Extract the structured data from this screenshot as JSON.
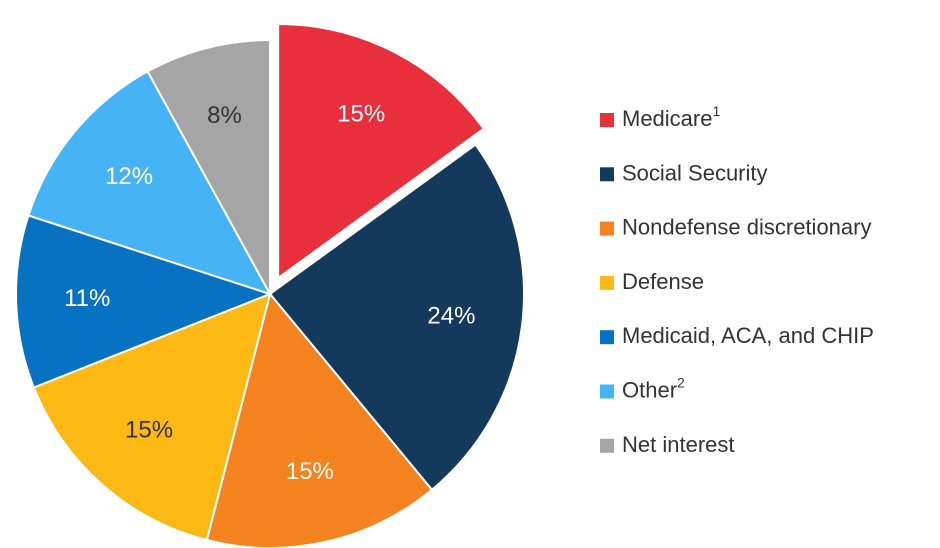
{
  "chart_data": {
    "type": "pie",
    "categories": [
      "Medicare",
      "Social Security",
      "Nondefense discretionary",
      "Defense",
      "Medicaid, ACA, and CHIP",
      "Other",
      "Net interest"
    ],
    "superscripts": [
      "1",
      null,
      null,
      null,
      null,
      "2",
      null
    ],
    "values": [
      15,
      24,
      15,
      15,
      11,
      12,
      8
    ],
    "value_labels": [
      "15%",
      "24%",
      "15%",
      "15%",
      "11%",
      "12%",
      "8%"
    ],
    "colors": [
      "#e92f3b",
      "#133a5c",
      "#f4821f",
      "#fcb813",
      "#0772c1",
      "#46b3f4",
      "#a5a5a5"
    ],
    "label_colors": [
      "#ffffff",
      "#ffffff",
      "#ffffff",
      "#333333",
      "#ffffff",
      "#ffffff",
      "#333333"
    ],
    "exploded": [
      true,
      false,
      false,
      false,
      false,
      false,
      false
    ]
  }
}
